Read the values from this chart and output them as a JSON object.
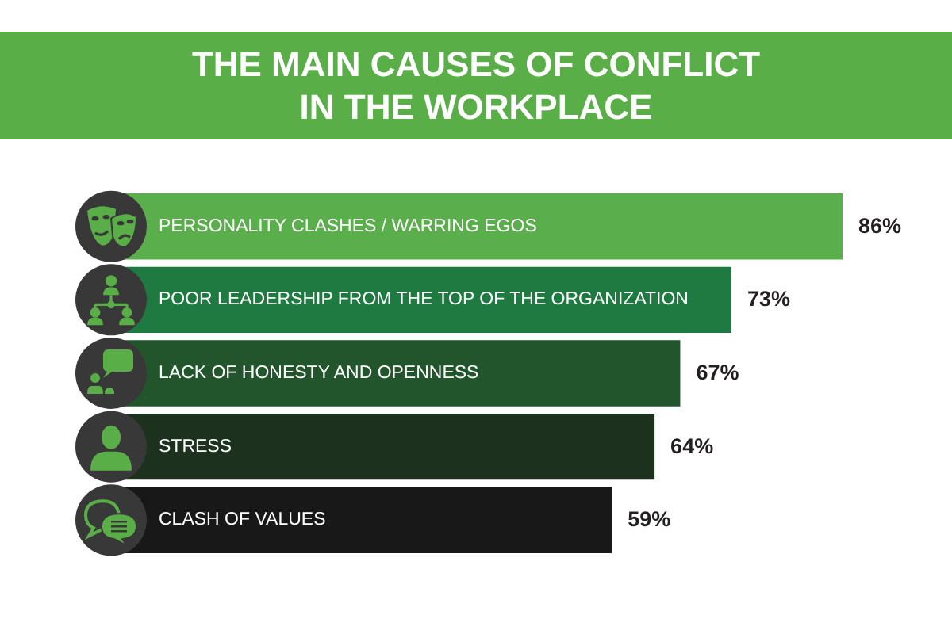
{
  "chart_data": {
    "type": "bar",
    "orientation": "horizontal",
    "title": "THE MAIN CAUSES OF CONFLICT IN THE WORKPLACE",
    "categories": [
      "PERSONALITY CLASHES / WARRING EGOS",
      "POOR LEADERSHIP FROM THE TOP OF THE ORGANIZATION",
      "LACK OF HONESTY AND OPENNESS",
      "STRESS",
      "CLASH OF VALUES"
    ],
    "values": [
      86,
      73,
      67,
      64,
      59
    ],
    "colors": [
      "#5aae4b",
      "#1e7a41",
      "#22552c",
      "#1c321e",
      "#181818"
    ],
    "value_labels": [
      "86%",
      "73%",
      "67%",
      "64%",
      "59%"
    ],
    "tick_labels": "y"
  }
}
